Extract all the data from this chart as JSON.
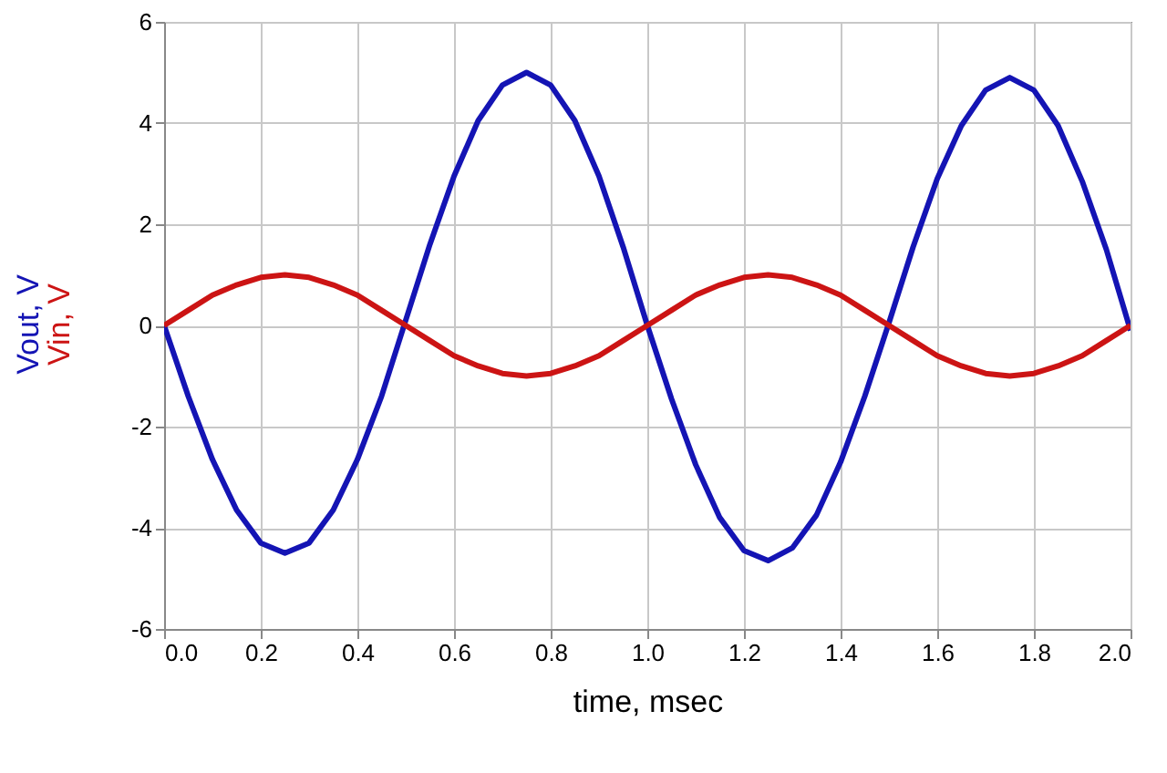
{
  "chart_data": {
    "type": "line",
    "xlabel": "time, msec",
    "x": [
      0,
      0.05,
      0.1,
      0.15,
      0.2,
      0.25,
      0.3,
      0.35,
      0.4,
      0.45,
      0.5,
      0.55,
      0.6,
      0.65,
      0.7,
      0.75,
      0.8,
      0.85,
      0.9,
      0.95,
      1.0,
      1.05,
      1.1,
      1.15,
      1.2,
      1.25,
      1.3,
      1.35,
      1.4,
      1.45,
      1.5,
      1.55,
      1.6,
      1.65,
      1.7,
      1.75,
      1.8,
      1.85,
      1.9,
      1.95,
      2.0
    ],
    "series": [
      {
        "name": "Vout, V",
        "color": "#1414b4",
        "values": [
          0,
          -1.4,
          -2.65,
          -3.65,
          -4.3,
          -4.5,
          -4.3,
          -3.65,
          -2.65,
          -1.4,
          0.1,
          1.6,
          2.95,
          4.05,
          4.75,
          5.0,
          4.75,
          4.05,
          2.95,
          1.55,
          0,
          -1.45,
          -2.75,
          -3.8,
          -4.45,
          -4.65,
          -4.4,
          -3.75,
          -2.7,
          -1.4,
          0.05,
          1.55,
          2.9,
          3.95,
          4.65,
          4.9,
          4.65,
          3.95,
          2.85,
          1.5,
          -0.1
        ]
      },
      {
        "name": "Vin, V",
        "color": "#cc1414",
        "values": [
          0,
          0.3,
          0.6,
          0.8,
          0.95,
          1.0,
          0.95,
          0.8,
          0.6,
          0.3,
          0,
          -0.3,
          -0.6,
          -0.8,
          -0.95,
          -1.0,
          -0.95,
          -0.8,
          -0.6,
          -0.3,
          0,
          0.3,
          0.6,
          0.8,
          0.95,
          1.0,
          0.95,
          0.8,
          0.6,
          0.3,
          0,
          -0.3,
          -0.6,
          -0.8,
          -0.95,
          -1.0,
          -0.95,
          -0.8,
          -0.6,
          -0.3,
          0
        ]
      }
    ],
    "xlim": [
      0,
      2
    ],
    "xticks": [
      {
        "value": 0,
        "label": "0.0"
      },
      {
        "value": 0.2,
        "label": "0.2"
      },
      {
        "value": 0.4,
        "label": "0.4"
      },
      {
        "value": 0.6,
        "label": "0.6"
      },
      {
        "value": 0.8,
        "label": "0.8"
      },
      {
        "value": 1,
        "label": "1.0"
      },
      {
        "value": 1.2,
        "label": "1.2"
      },
      {
        "value": 1.4,
        "label": "1.4"
      },
      {
        "value": 1.6,
        "label": "1.6"
      },
      {
        "value": 1.8,
        "label": "1.8"
      },
      {
        "value": 2,
        "label": "2.0"
      }
    ],
    "ylim": [
      -6,
      6
    ],
    "yticks": [
      -6,
      -4,
      -2,
      0,
      2,
      4,
      6
    ],
    "grid": true,
    "legend": false,
    "line_style": "solid",
    "marker": "none"
  }
}
